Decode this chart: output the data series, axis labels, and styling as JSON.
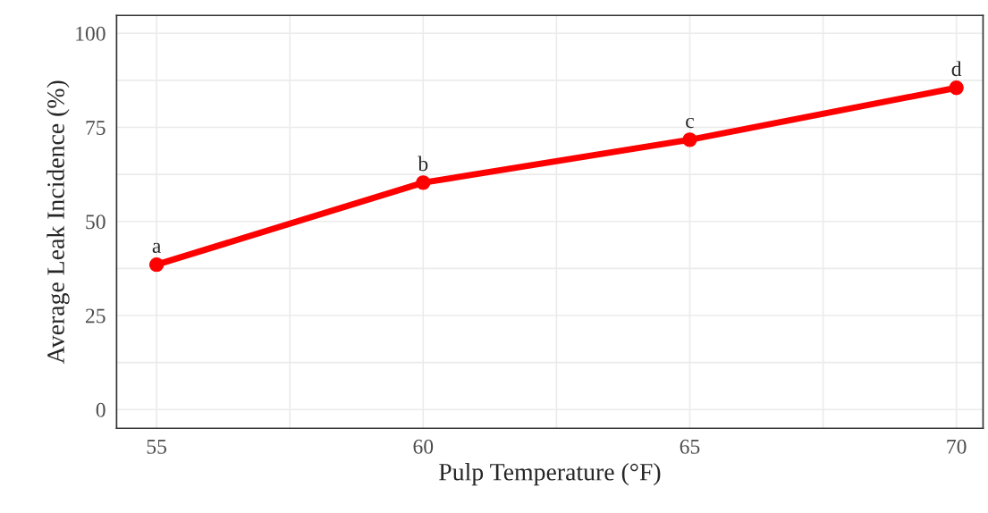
{
  "chart_data": {
    "type": "line",
    "xlabel": "Pulp Temperature (°F)",
    "ylabel": "Average Leak Incidence (%)",
    "x": [
      55,
      60,
      65,
      70
    ],
    "series": [
      {
        "color": "#ff0000",
        "values": [
          38.5,
          60.3,
          71.7,
          85.5
        ]
      }
    ],
    "marker": "circle",
    "line_style": "solid",
    "xlim": [
      54.25,
      70.5
    ],
    "xticks": [
      55,
      60,
      65,
      70
    ],
    "ylim": [
      -5,
      104.75
    ],
    "yticks": [
      0,
      25,
      50,
      75,
      100
    ],
    "grid": true,
    "annotations": [
      {
        "text": "a",
        "x": 55,
        "y": 38.5
      },
      {
        "text": "b",
        "x": 60,
        "y": 60.3
      },
      {
        "text": "c",
        "x": 65,
        "y": 71.7
      },
      {
        "text": "d",
        "x": 70,
        "y": 85.5
      }
    ]
  }
}
